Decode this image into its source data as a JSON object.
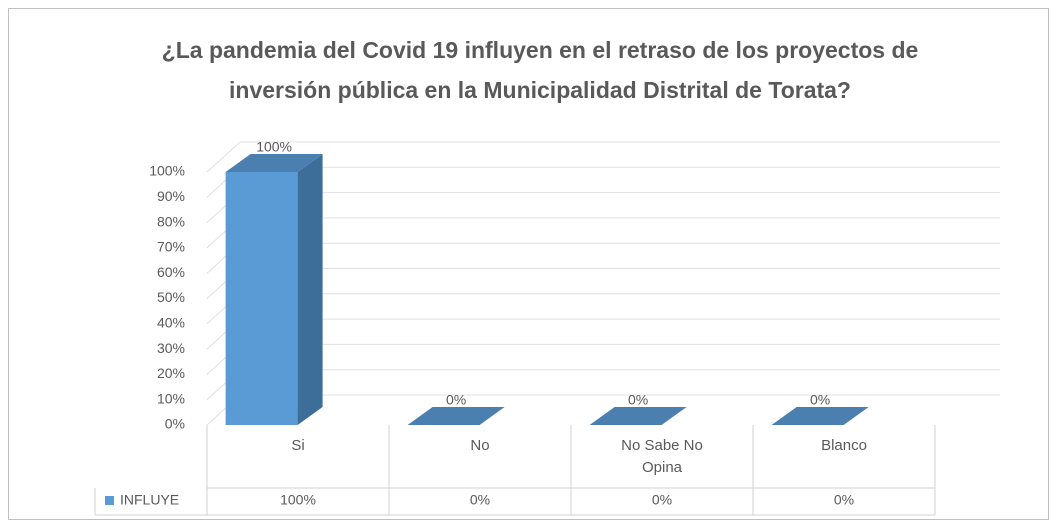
{
  "chart_data": {
    "type": "bar3d",
    "title": "¿La pandemia del Covid 19 influyen en el retraso de los proyectos de inversión pública en la Municipalidad Distrital de Torata?",
    "categories": [
      "Si",
      "No",
      "No Sabe No Opina",
      "Blanco"
    ],
    "series": [
      {
        "name": "INFLUYE",
        "color": "#5b9bd5",
        "values": [
          100,
          0,
          0,
          0
        ],
        "value_labels": [
          "100%",
          "0%",
          "0%",
          "0%"
        ]
      }
    ],
    "ylim": [
      0,
      100
    ],
    "yticks": [
      {
        "value": 0,
        "label": "0%"
      },
      {
        "value": 10,
        "label": "10%"
      },
      {
        "value": 20,
        "label": "20%"
      },
      {
        "value": 30,
        "label": "30%"
      },
      {
        "value": 40,
        "label": "40%"
      },
      {
        "value": 50,
        "label": "50%"
      },
      {
        "value": 60,
        "label": "60%"
      },
      {
        "value": 70,
        "label": "70%"
      },
      {
        "value": 80,
        "label": "80%"
      },
      {
        "value": 90,
        "label": "90%"
      },
      {
        "value": 100,
        "label": "100%"
      }
    ],
    "grid": true,
    "data_table": true
  }
}
